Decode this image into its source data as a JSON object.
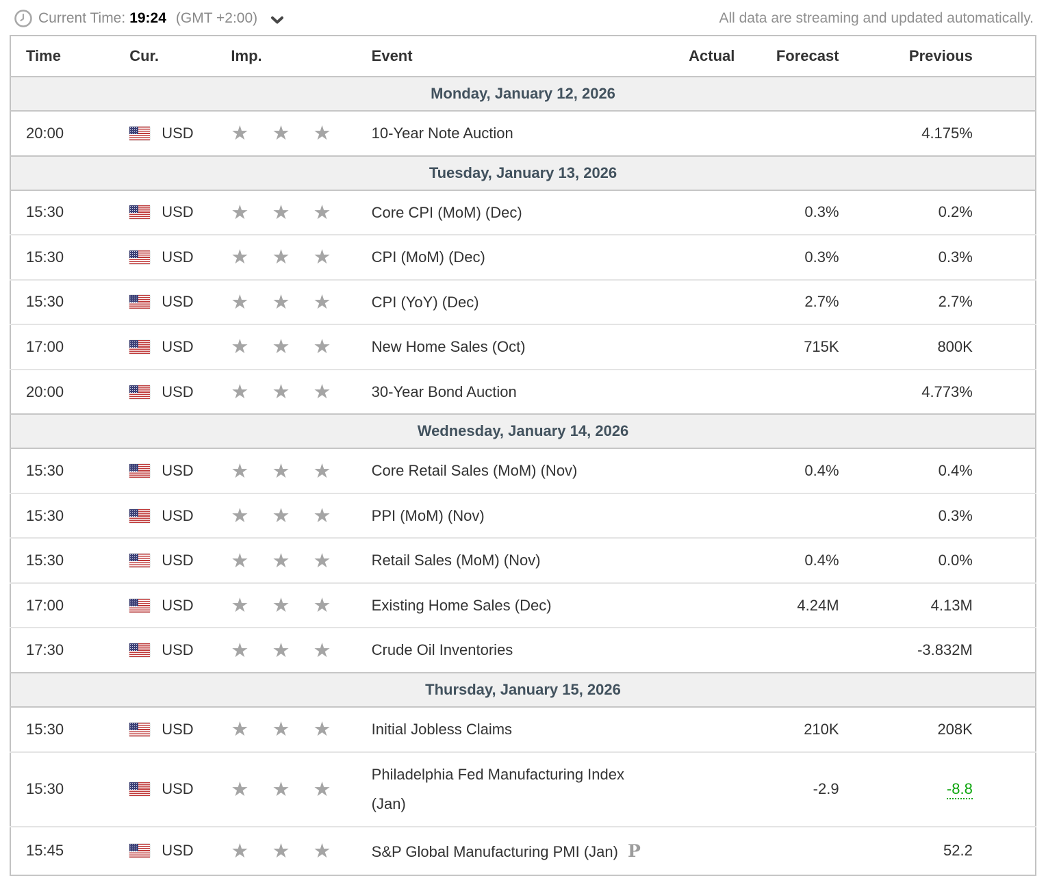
{
  "topbar": {
    "current_time_label": "Current Time:",
    "current_time_value": "19:24",
    "timezone": "(GMT +2:00)",
    "streaming_note": "All data are streaming and updated automatically."
  },
  "icons": {
    "clock": "clock-icon",
    "chevron": "chevron-down-icon",
    "flag": "us-flag-icon",
    "star": "★",
    "preliminary_marker": "P"
  },
  "colors": {
    "green": "#0ca50c",
    "day_header_text": "#42525e",
    "day_header_bg": "#f0f0f0",
    "star_gray": "#a5a5a5"
  },
  "table": {
    "columns": {
      "time": "Time",
      "cur": "Cur.",
      "imp": "Imp.",
      "event": "Event",
      "actual": "Actual",
      "forecast": "Forecast",
      "previous": "Previous"
    },
    "days": [
      {
        "date_label": "Monday, January 12, 2026",
        "rows": [
          {
            "time": "20:00",
            "currency": "USD",
            "importance": 3,
            "event": "10-Year Note Auction",
            "actual": "",
            "forecast": "",
            "previous": "4.175%"
          }
        ]
      },
      {
        "date_label": "Tuesday, January 13, 2026",
        "rows": [
          {
            "time": "15:30",
            "currency": "USD",
            "importance": 3,
            "event": "Core CPI (MoM) (Dec)",
            "actual": "",
            "forecast": "0.3%",
            "previous": "0.2%"
          },
          {
            "time": "15:30",
            "currency": "USD",
            "importance": 3,
            "event": "CPI (MoM) (Dec)",
            "actual": "",
            "forecast": "0.3%",
            "previous": "0.3%"
          },
          {
            "time": "15:30",
            "currency": "USD",
            "importance": 3,
            "event": "CPI (YoY) (Dec)",
            "actual": "",
            "forecast": "2.7%",
            "previous": "2.7%"
          },
          {
            "time": "17:00",
            "currency": "USD",
            "importance": 3,
            "event": "New Home Sales (Oct)",
            "actual": "",
            "forecast": "715K",
            "previous": "800K"
          },
          {
            "time": "20:00",
            "currency": "USD",
            "importance": 3,
            "event": "30-Year Bond Auction",
            "actual": "",
            "forecast": "",
            "previous": "4.773%"
          }
        ]
      },
      {
        "date_label": "Wednesday, January 14, 2026",
        "rows": [
          {
            "time": "15:30",
            "currency": "USD",
            "importance": 3,
            "event": "Core Retail Sales (MoM) (Nov)",
            "actual": "",
            "forecast": "0.4%",
            "previous": "0.4%"
          },
          {
            "time": "15:30",
            "currency": "USD",
            "importance": 3,
            "event": "PPI (MoM) (Nov)",
            "actual": "",
            "forecast": "",
            "previous": "0.3%"
          },
          {
            "time": "15:30",
            "currency": "USD",
            "importance": 3,
            "event": "Retail Sales (MoM) (Nov)",
            "actual": "",
            "forecast": "0.4%",
            "previous": "0.0%"
          },
          {
            "time": "17:00",
            "currency": "USD",
            "importance": 3,
            "event": "Existing Home Sales (Dec)",
            "actual": "",
            "forecast": "4.24M",
            "previous": "4.13M"
          },
          {
            "time": "17:30",
            "currency": "USD",
            "importance": 3,
            "event": "Crude Oil Inventories",
            "actual": "",
            "forecast": "",
            "previous": "-3.832M"
          }
        ]
      },
      {
        "date_label": "Thursday, January 15, 2026",
        "rows": [
          {
            "time": "15:30",
            "currency": "USD",
            "importance": 3,
            "event": "Initial Jobless Claims",
            "actual": "",
            "forecast": "210K",
            "previous": "208K"
          },
          {
            "time": "15:30",
            "currency": "USD",
            "importance": 3,
            "event": "Philadelphia Fed Manufacturing Index (Jan)",
            "actual": "",
            "forecast": "-2.9",
            "previous": "-8.8",
            "previous_style": "green-dotted"
          },
          {
            "time": "15:45",
            "currency": "USD",
            "importance": 3,
            "event": "S&P Global Manufacturing PMI (Jan)",
            "preliminary": true,
            "actual": "",
            "forecast": "",
            "previous": "52.2"
          }
        ]
      }
    ]
  }
}
